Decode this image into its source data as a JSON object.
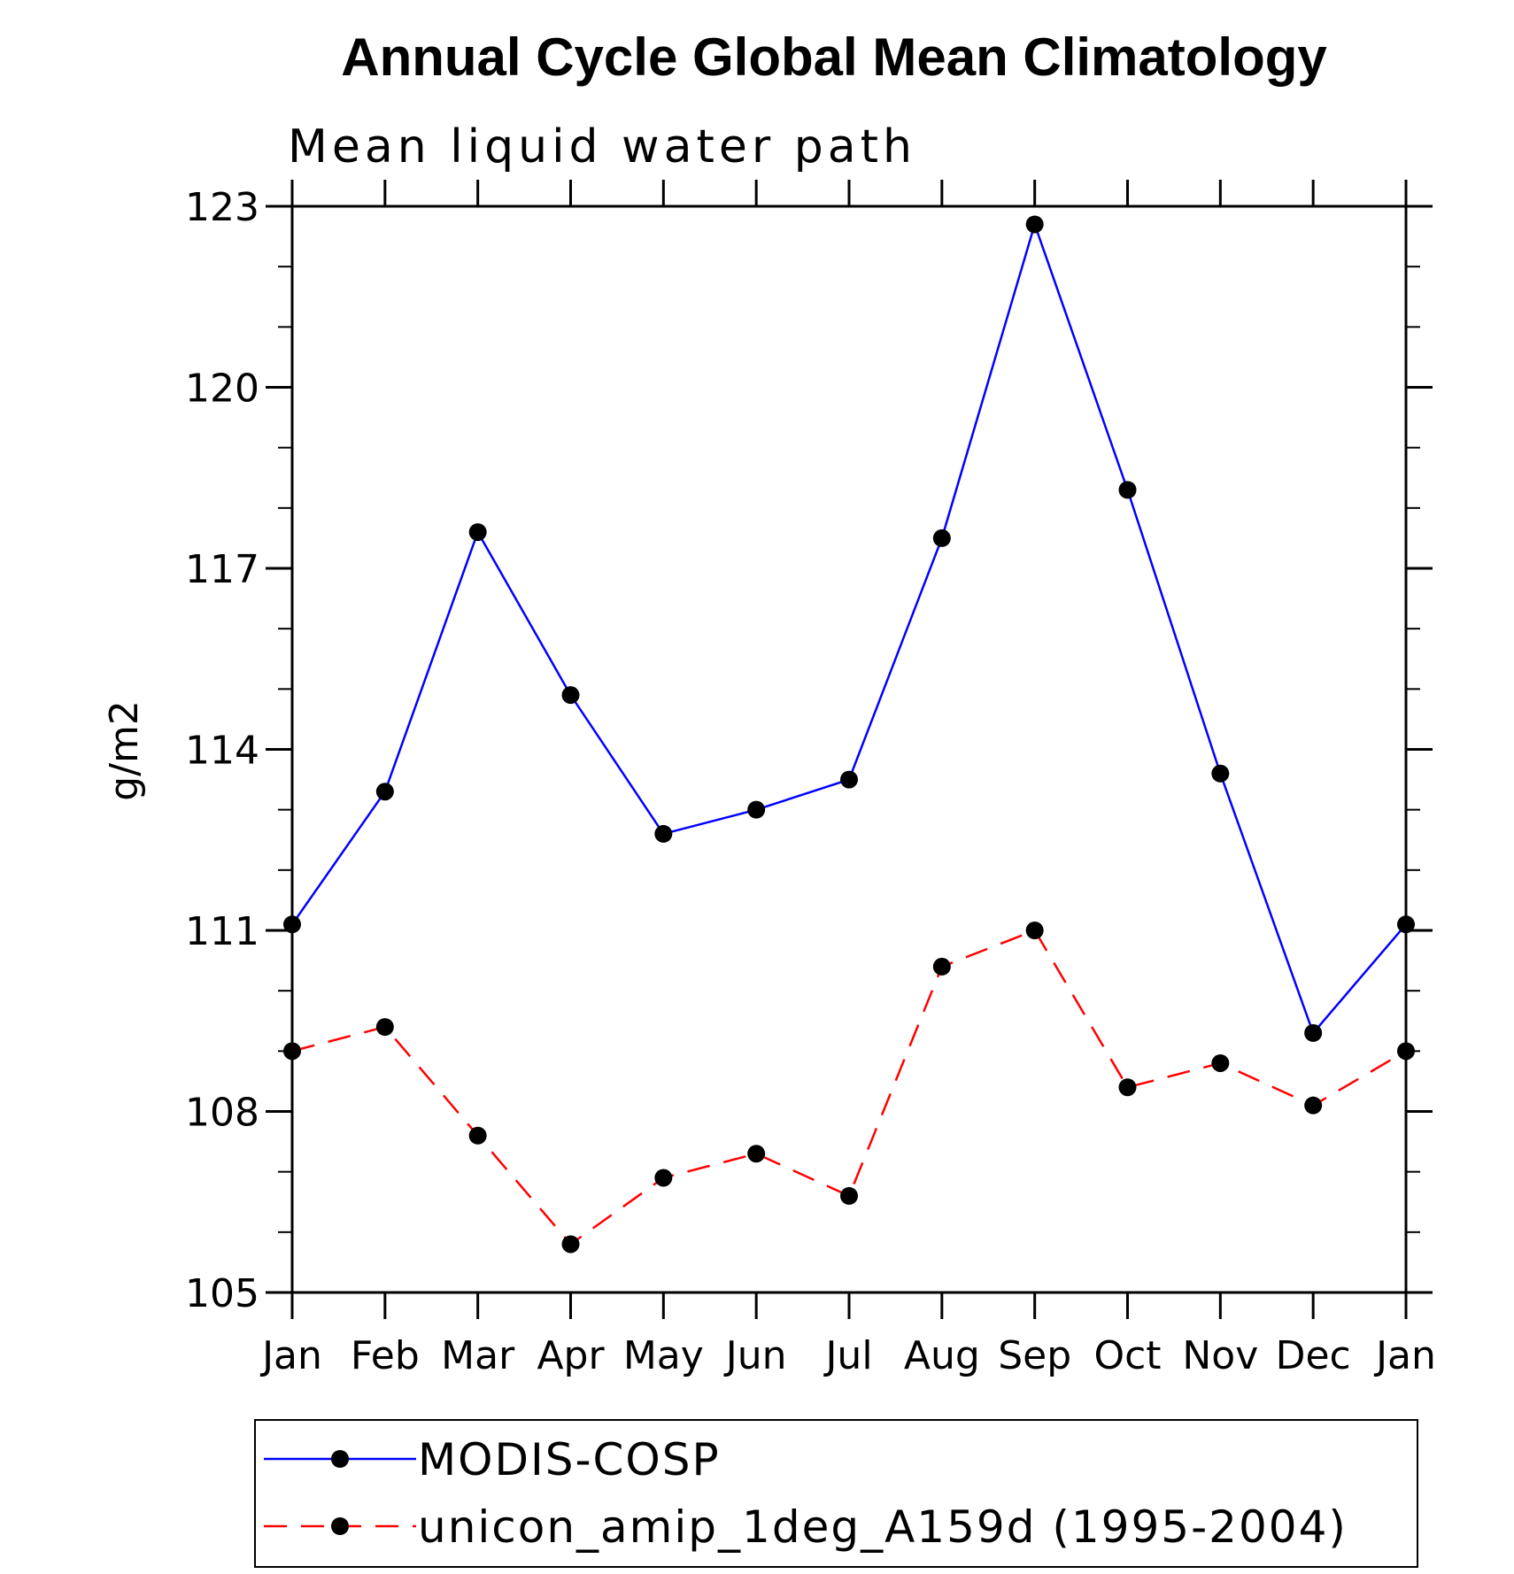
{
  "chart_data": {
    "type": "line",
    "title": "Annual Cycle Global Mean Climatology",
    "subtitle": "Mean liquid water path",
    "ylabel": "g/m2",
    "xlabel": "",
    "categories": [
      "Jan",
      "Feb",
      "Mar",
      "Apr",
      "May",
      "Jun",
      "Jul",
      "Aug",
      "Sep",
      "Oct",
      "Nov",
      "Dec",
      "Jan"
    ],
    "ylim": [
      105,
      123
    ],
    "yticks": [
      105,
      108,
      111,
      114,
      117,
      120,
      123
    ],
    "ytick_labels": [
      "105",
      "108",
      "111",
      "114",
      "117",
      "120",
      "123"
    ],
    "grid": false,
    "legend_position": "bottom",
    "series": [
      {
        "name": "MODIS-COSP",
        "color": "#0000ff",
        "line_style": "solid",
        "marker": "circle",
        "values": [
          111.1,
          113.3,
          117.6,
          114.9,
          112.6,
          113.0,
          113.5,
          117.5,
          122.7,
          118.3,
          113.6,
          109.3,
          111.1
        ]
      },
      {
        "name": "unicon_amip_1deg_A159d (1995-2004)",
        "color": "#ff0000",
        "line_style": "dashed",
        "marker": "circle",
        "values": [
          109.0,
          109.4,
          107.6,
          105.8,
          106.9,
          107.3,
          106.6,
          110.4,
          111.0,
          108.4,
          108.8,
          108.1,
          109.0
        ]
      }
    ]
  }
}
